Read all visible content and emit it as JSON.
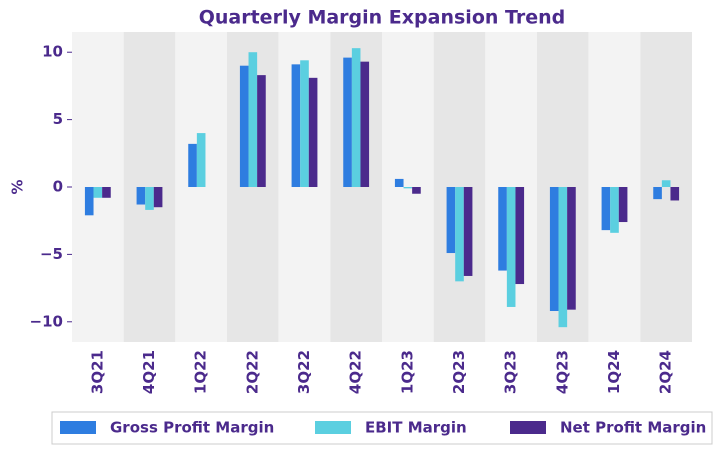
{
  "chart_data": {
    "type": "bar",
    "title": "Quarterly Margin Expansion Trend",
    "y_label": "%",
    "categories": [
      "3Q21",
      "4Q21",
      "1Q22",
      "2Q22",
      "3Q22",
      "4Q22",
      "1Q23",
      "2Q23",
      "3Q23",
      "4Q23",
      "1Q24",
      "2Q24"
    ],
    "series": [
      {
        "name": "Gross Profit Margin",
        "color": "#2e7de0",
        "values": [
          -2.1,
          -1.3,
          3.2,
          9.0,
          9.1,
          9.6,
          0.6,
          -4.9,
          -6.2,
          -9.2,
          -3.2,
          -0.9
        ]
      },
      {
        "name": "EBIT Margin",
        "color": "#5bcfe0",
        "values": [
          -0.8,
          -1.7,
          4.0,
          10.0,
          9.4,
          10.3,
          -0.1,
          -7.0,
          -8.9,
          -10.4,
          -3.4,
          0.5
        ]
      },
      {
        "name": "Net Profit Margin",
        "color": "#4b2a8c",
        "values": [
          -0.8,
          -1.5,
          0,
          8.3,
          8.1,
          9.3,
          -0.5,
          -6.6,
          -7.2,
          -9.1,
          -2.6,
          -1.0
        ]
      }
    ],
    "ylim": [
      -11.5,
      11.5
    ],
    "yticks": [
      {
        "value": -10,
        "label": "−10"
      },
      {
        "value": -5,
        "label": "−5"
      },
      0,
      5,
      10
    ],
    "legend": "bottom"
  }
}
